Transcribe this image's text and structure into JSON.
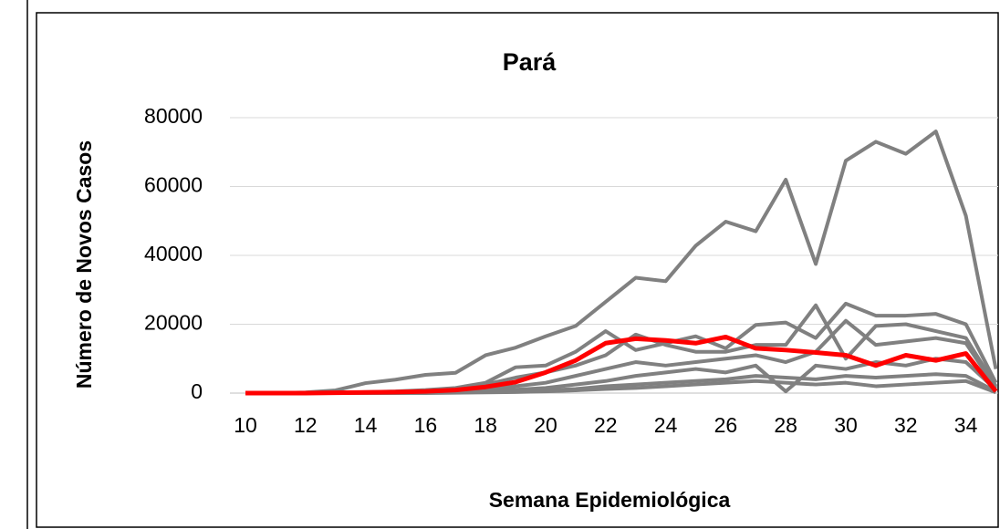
{
  "chart_data": {
    "type": "line",
    "title": "Pará",
    "x_label": "Semana Epidemiológica",
    "y_label": "Número de Novos Casos",
    "categories": [
      10,
      null,
      12,
      null,
      14,
      null,
      16,
      null,
      18,
      null,
      20,
      null,
      22,
      null,
      24,
      null,
      26,
      null,
      28,
      null,
      30,
      null,
      32,
      null,
      34,
      null
    ],
    "ylim": [
      0,
      80000
    ],
    "yticks": [
      0,
      20000,
      40000,
      60000,
      80000
    ],
    "grid": true,
    "series": [
      {
        "color": "#808080",
        "values": [
          0,
          0,
          200,
          800,
          2900,
          3900,
          5300,
          5900,
          11000,
          13200,
          16500,
          19500,
          26500,
          33500,
          32500,
          42800,
          49800,
          47000,
          62000,
          37500,
          67500,
          73000,
          69500,
          76000,
          51500,
          7000
        ]
      },
      {
        "color": "#808080",
        "values": [
          0,
          0,
          0,
          100,
          300,
          500,
          900,
          1500,
          3000,
          7500,
          8000,
          12000,
          18000,
          12500,
          14500,
          16500,
          13000,
          19800,
          20500,
          16000,
          26000,
          22500,
          22500,
          23000,
          20000,
          3000
        ]
      },
      {
        "color": "#808080",
        "values": [
          0,
          0,
          0,
          100,
          200,
          400,
          700,
          1200,
          2500,
          4500,
          6000,
          8000,
          11000,
          17000,
          14000,
          12000,
          12000,
          14000,
          14000,
          25500,
          10000,
          19500,
          20000,
          18000,
          16000,
          2000
        ]
      },
      {
        "color": "#808080",
        "values": [
          0,
          0,
          0,
          0,
          100,
          200,
          300,
          500,
          1000,
          2000,
          3000,
          5000,
          7000,
          9000,
          8000,
          9000,
          10000,
          11000,
          9000,
          12000,
          21000,
          14000,
          15000,
          16000,
          14500,
          1500
        ]
      },
      {
        "color": "#808080",
        "values": [
          0,
          0,
          0,
          0,
          0,
          100,
          200,
          300,
          600,
          1000,
          1500,
          2500,
          3500,
          5000,
          6000,
          7000,
          6000,
          8000,
          500,
          8000,
          7000,
          9000,
          8000,
          10000,
          9000,
          1000
        ]
      },
      {
        "color": "#808080",
        "values": [
          0,
          0,
          0,
          0,
          0,
          0,
          100,
          200,
          300,
          500,
          800,
          1200,
          2000,
          2500,
          3000,
          3500,
          4000,
          5000,
          4500,
          4000,
          5000,
          4500,
          5000,
          5500,
          5000,
          500
        ]
      },
      {
        "color": "#808080",
        "values": [
          0,
          0,
          0,
          0,
          0,
          0,
          0,
          100,
          200,
          300,
          500,
          800,
          1200,
          1500,
          2000,
          2500,
          3000,
          3500,
          3000,
          2500,
          3000,
          2000,
          2500,
          3000,
          3500,
          200
        ]
      },
      {
        "color": "#ff0000",
        "values": [
          0,
          0,
          0,
          100,
          200,
          300,
          500,
          900,
          1800,
          3200,
          6000,
          9500,
          14500,
          15800,
          15300,
          14500,
          16300,
          13000,
          12500,
          11800,
          11000,
          8000,
          11000,
          9500,
          11500,
          500
        ]
      }
    ]
  }
}
